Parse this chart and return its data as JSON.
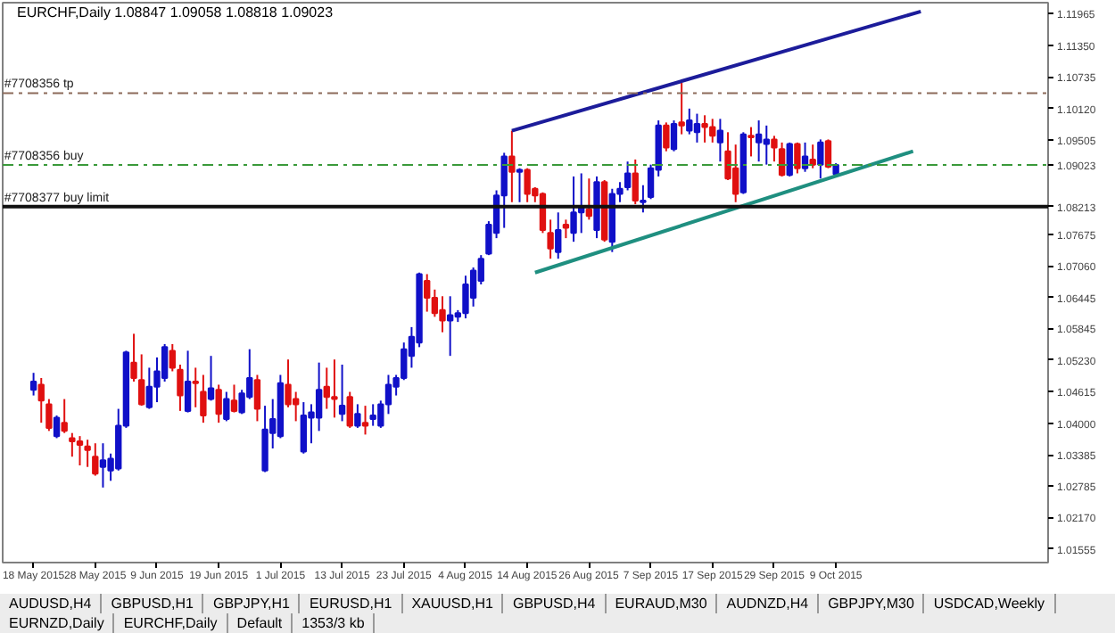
{
  "chart_data": {
    "type": "candlestick",
    "title": "EURCHF,Daily  1.08847 1.09058 1.08818 1.09023",
    "categories": [
      "18 May 2015",
      null,
      null,
      null,
      null,
      null,
      null,
      null,
      "28 May 2015",
      null,
      null,
      null,
      null,
      null,
      null,
      null,
      "9 Jun 2015",
      null,
      null,
      null,
      null,
      null,
      null,
      null,
      "19 Jun 2015",
      null,
      null,
      null,
      null,
      null,
      null,
      null,
      "1 Jul 2015",
      null,
      null,
      null,
      null,
      null,
      null,
      null,
      "13 Jul 2015",
      null,
      null,
      null,
      null,
      null,
      null,
      null,
      "23 Jul 2015",
      null,
      null,
      null,
      null,
      null,
      null,
      null,
      "4 Aug 2015",
      null,
      null,
      null,
      null,
      null,
      null,
      null,
      "14 Aug 2015",
      null,
      null,
      null,
      null,
      null,
      null,
      null,
      "26 Aug 2015",
      null,
      null,
      null,
      null,
      null,
      null,
      null,
      "7 Sep 2015",
      null,
      null,
      null,
      null,
      null,
      null,
      null,
      "17 Sep 2015",
      null,
      null,
      null,
      null,
      null,
      null,
      null,
      "29 Sep 2015",
      null,
      null,
      null,
      null,
      null,
      null,
      null,
      "9 Oct 2015",
      null,
      null,
      null,
      null,
      null,
      null,
      null,
      null,
      null,
      null,
      null,
      null,
      null,
      null,
      null,
      null,
      null,
      null,
      null,
      null,
      null,
      null,
      null,
      null,
      null,
      null,
      null
    ],
    "ohlc": [
      [
        1.0465,
        1.0498,
        1.0454,
        1.0481
      ],
      [
        1.0475,
        1.0488,
        1.0401,
        1.0444
      ],
      [
        1.0437,
        1.0447,
        1.0385,
        1.0391
      ],
      [
        1.0375,
        1.0415,
        1.0371,
        1.0411
      ],
      [
        1.0401,
        1.0447,
        1.0381,
        1.0385
      ],
      [
        1.0371,
        1.0381,
        1.0335,
        1.0365
      ],
      [
        1.0365,
        1.0375,
        1.0318,
        1.0358
      ],
      [
        1.0355,
        1.0368,
        1.0315,
        1.0348
      ],
      [
        1.0335,
        1.0361,
        1.0298,
        1.0302
      ],
      [
        1.0315,
        1.0361,
        1.0275,
        1.0328
      ],
      [
        1.0308,
        1.0341,
        1.0288,
        1.0331
      ],
      [
        1.0312,
        1.0428,
        1.0308,
        1.0395
      ],
      [
        1.0395,
        1.0541,
        1.0391,
        1.0538
      ],
      [
        1.0518,
        1.0574,
        1.0481,
        1.0488
      ],
      [
        1.0484,
        1.0534,
        1.0434,
        1.0437
      ],
      [
        1.0431,
        1.0508,
        1.0428,
        1.0471
      ],
      [
        1.0471,
        1.0528,
        1.0441,
        1.0501
      ],
      [
        1.0488,
        1.0554,
        1.0481,
        1.0548
      ],
      [
        1.0541,
        1.0554,
        1.0501,
        1.0508
      ],
      [
        1.0504,
        1.0514,
        1.0424,
        1.0454
      ],
      [
        1.0424,
        1.0541,
        1.0421,
        1.0481
      ],
      [
        1.0481,
        1.0508,
        1.0431,
        1.0478
      ],
      [
        1.0461,
        1.0494,
        1.0401,
        1.0415
      ],
      [
        1.0447,
        1.0531,
        1.0444,
        1.0468
      ],
      [
        1.0465,
        1.0475,
        1.0401,
        1.0418
      ],
      [
        1.0408,
        1.0461,
        1.0404,
        1.0447
      ],
      [
        1.0444,
        1.0475,
        1.0421,
        1.0424
      ],
      [
        1.0421,
        1.0465,
        1.0418,
        1.0458
      ],
      [
        1.0451,
        1.0544,
        1.0447,
        1.0488
      ],
      [
        1.0484,
        1.0494,
        1.0404,
        1.0428
      ],
      [
        1.0308,
        1.0434,
        1.0305,
        1.0388
      ],
      [
        1.0381,
        1.0447,
        1.0351,
        1.0408
      ],
      [
        1.0375,
        1.0494,
        1.0371,
        1.0478
      ],
      [
        1.0475,
        1.0524,
        1.0431,
        1.0437
      ],
      [
        1.0447,
        1.0461,
        1.0404,
        1.0437
      ],
      [
        1.0345,
        1.0441,
        1.0341,
        1.0415
      ],
      [
        1.0411,
        1.0437,
        1.0361,
        1.0421
      ],
      [
        1.0411,
        1.0518,
        1.0385,
        1.0465
      ],
      [
        1.0471,
        1.0508,
        1.0428,
        1.0451
      ],
      [
        1.0451,
        1.0524,
        1.0411,
        1.0447
      ],
      [
        1.0418,
        1.0514,
        1.0404,
        1.0434
      ],
      [
        1.0451,
        1.0461,
        1.0391,
        1.0395
      ],
      [
        1.0395,
        1.0437,
        1.0391,
        1.0418
      ],
      [
        1.0401,
        1.0434,
        1.0378,
        1.0395
      ],
      [
        1.0408,
        1.0437,
        1.0395,
        1.0415
      ],
      [
        1.0395,
        1.0444,
        1.0391,
        1.0437
      ],
      [
        1.0437,
        1.0494,
        1.0418,
        1.0475
      ],
      [
        1.0471,
        1.0494,
        1.0454,
        1.0488
      ],
      [
        1.0488,
        1.0557,
        1.0484,
        1.0544
      ],
      [
        1.0531,
        1.0587,
        1.0508,
        1.0568
      ],
      [
        1.0557,
        1.0693,
        1.0548,
        1.069
      ],
      [
        1.0677,
        1.069,
        1.0617,
        1.0644
      ],
      [
        1.0644,
        1.066,
        1.0607,
        1.0614
      ],
      [
        1.062,
        1.0647,
        1.0577,
        1.06
      ],
      [
        1.06,
        1.0647,
        1.0531,
        1.061
      ],
      [
        1.0607,
        1.062,
        1.0597,
        1.0614
      ],
      [
        1.0614,
        1.0687,
        1.0604,
        1.067
      ],
      [
        1.0644,
        1.0703,
        1.0627,
        1.0697
      ],
      [
        1.0677,
        1.0727,
        1.067,
        1.072
      ],
      [
        1.073,
        1.0793,
        1.0727,
        1.0786
      ],
      [
        1.077,
        1.0853,
        1.076,
        1.0843
      ],
      [
        1.0843,
        1.0926,
        1.078,
        1.0919
      ],
      [
        1.0919,
        1.0969,
        1.083,
        1.0889
      ],
      [
        1.0889,
        1.0896,
        1.083,
        1.0893
      ],
      [
        1.0893,
        1.0896,
        1.083,
        1.0846
      ],
      [
        1.0856,
        1.0859,
        1.083,
        1.0843
      ],
      [
        1.0846,
        1.0849,
        1.077,
        1.0776
      ],
      [
        1.077,
        1.0796,
        1.072,
        1.074
      ],
      [
        1.0733,
        1.081,
        1.072,
        1.0776
      ],
      [
        1.0786,
        1.0796,
        1.076,
        1.078
      ],
      [
        1.077,
        1.088,
        1.0753,
        1.081
      ],
      [
        1.081,
        1.0886,
        1.077,
        1.082
      ],
      [
        1.0816,
        1.0876,
        1.0796,
        1.0803
      ],
      [
        1.0776,
        1.088,
        1.076,
        1.0869
      ],
      [
        1.0869,
        1.0873,
        1.0753,
        1.0757
      ],
      [
        1.0753,
        1.0856,
        1.0733,
        1.0846
      ],
      [
        1.0846,
        1.0869,
        1.083,
        1.0856
      ],
      [
        1.0859,
        1.0909,
        1.0853,
        1.0886
      ],
      [
        1.0886,
        1.0913,
        1.0826,
        1.0833
      ],
      [
        1.083,
        1.0863,
        1.081,
        1.0833
      ],
      [
        1.084,
        1.0903,
        1.0836,
        1.0896
      ],
      [
        1.0893,
        1.0989,
        1.088,
        1.0979
      ],
      [
        1.0979,
        1.0985,
        1.0929,
        1.0936
      ],
      [
        1.0933,
        1.0989,
        1.0929,
        1.0982
      ],
      [
        1.0985,
        1.1062,
        1.0962,
        1.0979
      ],
      [
        1.0969,
        1.1012,
        1.0962,
        1.0989
      ],
      [
        1.0966,
        1.1002,
        1.0946,
        1.0982
      ],
      [
        1.0982,
        1.0999,
        1.0946,
        1.0976
      ],
      [
        1.0976,
        1.0992,
        1.0946,
        1.0959
      ],
      [
        1.0946,
        1.0992,
        1.0909,
        1.0969
      ],
      [
        1.0929,
        1.0966,
        1.0873,
        1.0876
      ],
      [
        1.0896,
        1.0942,
        1.083,
        1.0846
      ],
      [
        1.0849,
        1.0966,
        1.0846,
        1.0962
      ],
      [
        1.0959,
        1.0976,
        1.0919,
        1.0956
      ],
      [
        1.0946,
        1.0989,
        1.0909,
        1.0962
      ],
      [
        1.0943,
        1.0979,
        1.0903,
        1.0952
      ],
      [
        1.0952,
        1.0959,
        1.0909,
        1.0936
      ],
      [
        1.0933,
        1.0946,
        1.088,
        1.0883
      ],
      [
        1.0883,
        1.0946,
        1.088,
        1.0943
      ],
      [
        1.0943,
        1.0946,
        1.0886,
        1.0896
      ],
      [
        1.0896,
        1.0946,
        1.0889,
        1.0919
      ],
      [
        1.0913,
        1.0942,
        1.0896,
        1.0903
      ],
      [
        1.0903,
        1.0952,
        1.0876,
        1.0946
      ],
      [
        1.0949,
        1.0952,
        1.0896,
        1.0899
      ],
      [
        1.08847,
        1.09058,
        1.08818,
        1.09023
      ],
      null,
      null,
      null,
      null,
      null,
      null,
      null,
      null,
      null,
      null,
      null,
      null,
      null,
      null,
      null,
      null,
      null,
      null,
      null,
      null,
      null,
      null,
      null,
      null,
      null,
      null,
      null
    ],
    "colors": [
      "#1010c8",
      "#e01010",
      "#e01010",
      "#1010c8",
      "#e01010",
      "#e01010",
      "#e01010",
      "#e01010",
      "#e01010",
      "#1010c8",
      "#1010c8",
      "#1010c8",
      "#1010c8",
      "#e01010",
      "#e01010",
      "#1010c8",
      "#1010c8",
      "#1010c8",
      "#e01010",
      "#e01010",
      "#1010c8",
      "#e01010",
      "#e01010",
      "#1010c8",
      "#e01010",
      "#1010c8",
      "#e01010",
      "#1010c8",
      "#1010c8",
      "#e01010",
      "#1010c8",
      "#1010c8",
      "#1010c8",
      "#e01010",
      "#e01010",
      "#1010c8",
      "#1010c8",
      "#1010c8",
      "#e01010",
      "#e01010",
      "#1010c8",
      "#e01010",
      "#1010c8",
      "#e01010",
      "#1010c8",
      "#1010c8",
      "#1010c8",
      "#1010c8",
      "#1010c8",
      "#1010c8",
      "#1010c8",
      "#e01010",
      "#e01010",
      "#e01010",
      "#1010c8",
      "#1010c8",
      "#1010c8",
      "#1010c8",
      "#1010c8",
      "#1010c8",
      "#1010c8",
      "#1010c8",
      "#e01010",
      "#1010c8",
      "#e01010",
      "#e01010",
      "#e01010",
      "#e01010",
      "#1010c8",
      "#e01010",
      "#1010c8",
      "#1010c8",
      "#e01010",
      "#1010c8",
      "#e01010",
      "#1010c8",
      "#1010c8",
      "#1010c8",
      "#e01010",
      "#1010c8",
      "#1010c8",
      "#1010c8",
      "#e01010",
      "#1010c8",
      "#e01010",
      "#1010c8",
      "#1010c8",
      "#e01010",
      "#e01010",
      "#1010c8",
      "#e01010",
      "#e01010",
      "#1010c8",
      "#e01010",
      "#1010c8",
      "#1010c8",
      "#e01010",
      "#e01010",
      "#1010c8",
      "#e01010",
      "#1010c8",
      "#e01010",
      "#1010c8",
      "#e01010",
      "#1010c8",
      null,
      null,
      null,
      null,
      null,
      null,
      null,
      null,
      null,
      null,
      null,
      null,
      null,
      null,
      null,
      null,
      null,
      null,
      null,
      null,
      null,
      null,
      null,
      null,
      null,
      null,
      null
    ],
    "series": [
      {
        "type": "line",
        "color": "#1c1c9a",
        "values": [
          null,
          null,
          null,
          null,
          null,
          null,
          null,
          null,
          null,
          null,
          null,
          null,
          null,
          null,
          null,
          null,
          null,
          null,
          null,
          null,
          null,
          null,
          null,
          null,
          null,
          null,
          null,
          null,
          null,
          null,
          null,
          null,
          null,
          null,
          null,
          null,
          null,
          null,
          null,
          null,
          null,
          null,
          null,
          null,
          null,
          null,
          null,
          null,
          null,
          null,
          null,
          null,
          null,
          null,
          null,
          null,
          null,
          null,
          null,
          null,
          null,
          null,
          1.0969,
          null,
          null,
          null,
          null,
          null,
          null,
          null,
          null,
          null,
          null,
          null,
          null,
          null,
          null,
          null,
          null,
          null,
          null,
          null,
          null,
          null,
          null,
          null,
          null,
          null,
          null,
          null,
          null,
          null,
          null,
          null,
          null,
          null,
          null,
          null,
          null,
          null,
          null,
          null,
          null,
          null,
          null,
          null,
          null,
          null,
          null,
          null,
          null,
          null,
          null,
          null,
          null,
          1.1201,
          null,
          null,
          null,
          null,
          null,
          null,
          null,
          null,
          null,
          null,
          null,
          null,
          null,
          null,
          null,
          null
        ]
      },
      {
        "type": "line",
        "color": "#1f8f80",
        "values": [
          null,
          null,
          null,
          null,
          null,
          null,
          null,
          null,
          null,
          null,
          null,
          null,
          null,
          null,
          null,
          null,
          null,
          null,
          null,
          null,
          null,
          null,
          null,
          null,
          null,
          null,
          null,
          null,
          null,
          null,
          null,
          null,
          null,
          null,
          null,
          null,
          null,
          null,
          null,
          null,
          null,
          null,
          null,
          null,
          null,
          null,
          null,
          null,
          null,
          null,
          null,
          null,
          null,
          null,
          null,
          null,
          null,
          null,
          null,
          null,
          null,
          null,
          null,
          null,
          null,
          1.0693,
          null,
          null,
          null,
          null,
          null,
          null,
          null,
          null,
          null,
          null,
          null,
          null,
          null,
          null,
          null,
          null,
          null,
          null,
          null,
          null,
          null,
          null,
          null,
          null,
          null,
          null,
          null,
          null,
          null,
          null,
          null,
          null,
          null,
          null,
          null,
          null,
          null,
          null,
          null,
          null,
          null,
          null,
          null,
          null,
          null,
          null,
          null,
          null,
          1.0929,
          null,
          null,
          null,
          null,
          null,
          null,
          null,
          null,
          null,
          null,
          null,
          null,
          null,
          null,
          null,
          null,
          null
        ]
      }
    ],
    "ylim": [
      1.0129,
      1.1218
    ],
    "yticks": [
      1.11965,
      {
        "value": 1.1135,
        "label": "1.11350"
      },
      1.10735,
      {
        "value": 1.1012,
        "label": "1.10120"
      },
      1.09505,
      1.09023,
      1.08213,
      1.07675,
      {
        "value": 1.0706,
        "label": "1.07060"
      },
      1.06445,
      1.05845,
      {
        "value": 1.0523,
        "label": "1.05230"
      },
      1.04615,
      {
        "value": 1.04,
        "label": "1.04000"
      },
      1.03385,
      1.02785,
      {
        "value": 1.0217,
        "label": "1.02170"
      },
      1.01555
    ],
    "ref_lines": [
      {
        "axis": "y",
        "value": 1.1042,
        "label": "#7708356 tp",
        "color": "#8c6a5a",
        "line_style": "dashed"
      },
      {
        "axis": "y",
        "value": 1.09023,
        "label": "#7708356 buy",
        "color": "#3a9a3a",
        "line_style": "dashed"
      },
      {
        "axis": "y",
        "value": 1.08213,
        "label": "#7708377 buy limit",
        "color": "#101010",
        "line_style": "solid"
      }
    ],
    "annotations": [
      "AUDUSD,H4",
      "GBPUSD,H1",
      "GBPJPY,H1",
      "EURUSD,H1",
      "XAUUSD,H1",
      "GBPUSD,H4",
      "EURAUD,M30",
      "AUDNZD,H4",
      "GBPJPY,M30",
      "USDCAD,Weekly",
      "EURNZD,Daily",
      "EURCHF,Daily",
      "Default",
      "1353/3 kb"
    ]
  }
}
